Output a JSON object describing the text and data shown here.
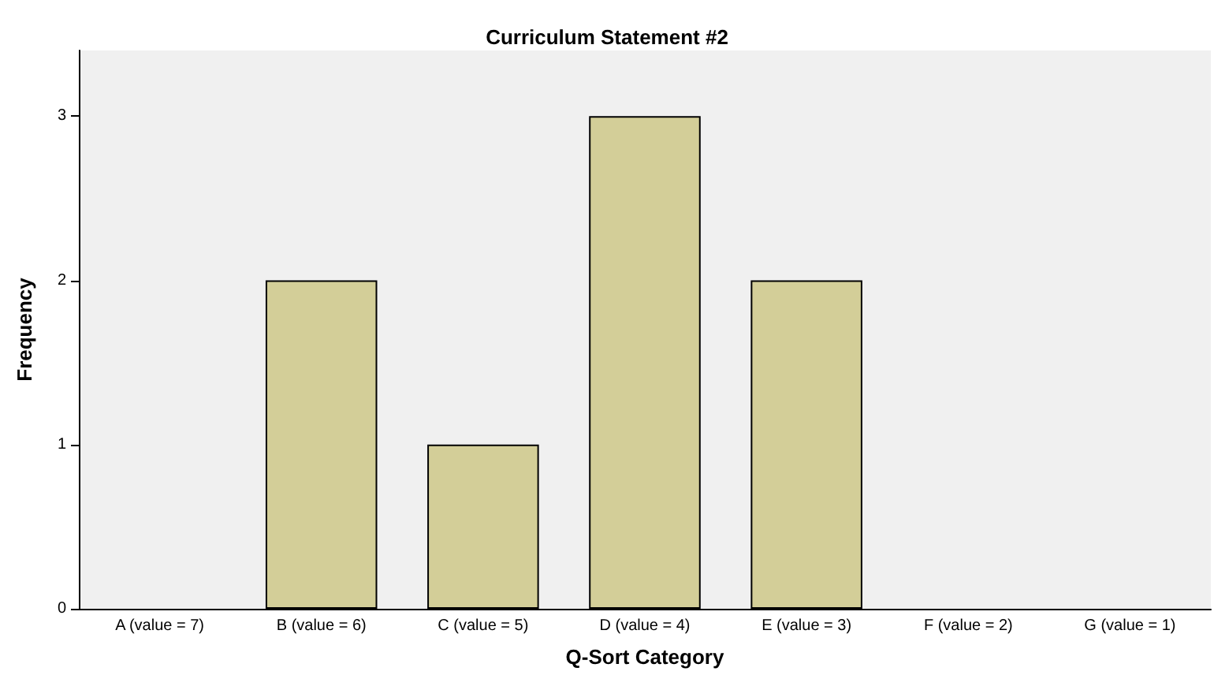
{
  "chart_data": {
    "type": "bar",
    "title": "Curriculum Statement #2",
    "xlabel": "Q-Sort Category",
    "ylabel": "Frequency",
    "categories": [
      "A (value = 7)",
      "B (value = 6)",
      "C (value = 5)",
      "D (value = 4)",
      "E (value = 3)",
      "F (value = 2)",
      "G (value = 1)"
    ],
    "values": [
      0,
      2,
      1,
      3,
      2,
      0,
      0
    ],
    "color": "#d3ce98",
    "ylim": [
      0,
      3.4
    ],
    "yticks": [
      0,
      1,
      2,
      3
    ],
    "grid": false
  }
}
